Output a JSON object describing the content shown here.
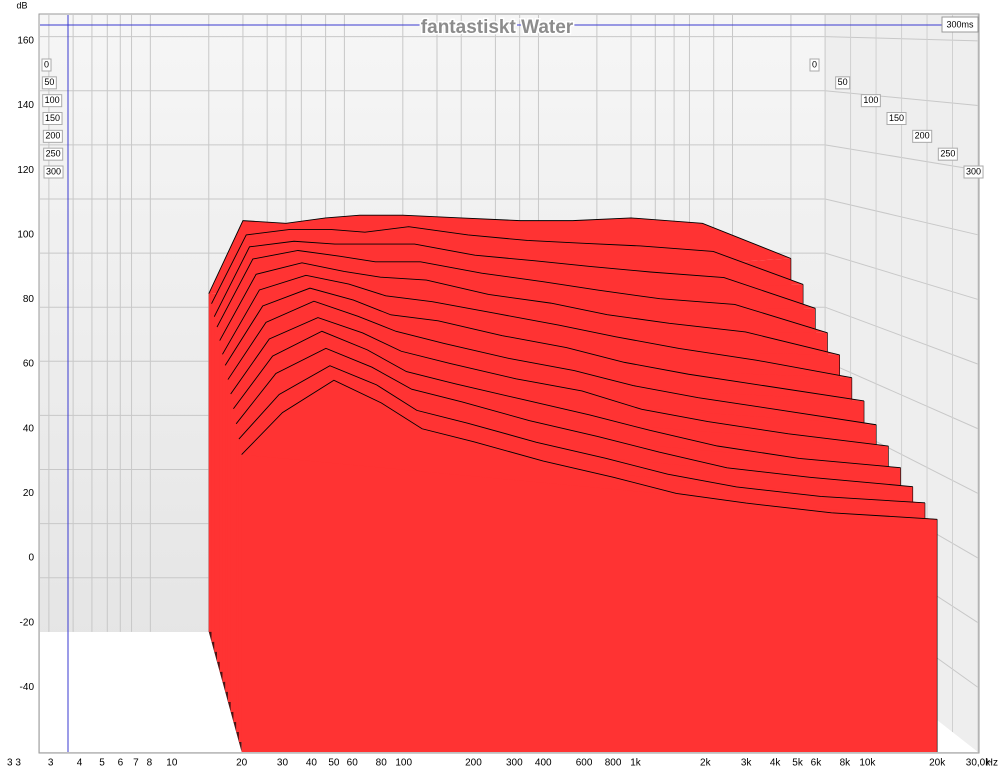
{
  "chart_data": {
    "type": "waterfall",
    "title": "fantastiskt Water",
    "y_label": "dB",
    "x_label": "Hz",
    "x_start_label": "3 3",
    "time_label": "300ms",
    "log_x": true,
    "grid": true,
    "color": "#ff3333",
    "line_color": "#000000",
    "side_color": "#4a1414",
    "xlim": [
      2.7,
      30000
    ],
    "ylim": [
      -60,
      168
    ],
    "zlim": [
      0,
      300
    ],
    "xticks": [
      3,
      4,
      5,
      6,
      7,
      8,
      10,
      20,
      30,
      40,
      50,
      60,
      80,
      100,
      200,
      300,
      400,
      600,
      800,
      {
        "value": 1000,
        "label": "1k"
      },
      {
        "value": 2000,
        "label": "2k"
      },
      {
        "value": 3000,
        "label": "3k"
      },
      {
        "value": 4000,
        "label": "4k"
      },
      {
        "value": 5000,
        "label": "5k"
      },
      {
        "value": 6000,
        "label": "6k"
      },
      {
        "value": 8000,
        "label": "8k"
      },
      {
        "value": 10000,
        "label": "10k"
      },
      {
        "value": 20000,
        "label": "20k"
      },
      {
        "value": 30000,
        "label": "30,0k"
      }
    ],
    "yticks": [
      -40,
      -20,
      0,
      20,
      40,
      60,
      80,
      100,
      120,
      140,
      160
    ],
    "zticks": [
      0,
      50,
      100,
      150,
      200,
      250,
      300
    ],
    "x": [
      20,
      30,
      50,
      80,
      120,
      200,
      400,
      800,
      1500,
      3000,
      7000,
      20000
    ],
    "slices": [
      {
        "time": 0,
        "values": [
          65,
          92,
          91,
          93,
          94,
          94,
          93,
          92,
          92,
          93,
          91,
          78
        ]
      },
      {
        "time": 25,
        "values": [
          63,
          88,
          90,
          90,
          89,
          91,
          88,
          86,
          85,
          84,
          82,
          70
        ]
      },
      {
        "time": 50,
        "values": [
          60,
          85,
          87,
          86,
          86,
          86,
          82,
          80,
          78,
          76,
          74,
          63
        ]
      },
      {
        "time": 75,
        "values": [
          58,
          82,
          85,
          83,
          81,
          81,
          77,
          74,
          71,
          68,
          66,
          56
        ]
      },
      {
        "time": 100,
        "values": [
          55,
          78,
          82,
          79,
          77,
          76,
          71,
          68,
          64,
          61,
          58,
          50
        ]
      },
      {
        "time": 125,
        "values": [
          52,
          74,
          79,
          76,
          72,
          70,
          66,
          62,
          58,
          54,
          50,
          44
        ]
      },
      {
        "time": 150,
        "values": [
          50,
          70,
          76,
          72,
          67,
          65,
          60,
          56,
          51,
          47,
          43,
          38
        ]
      },
      {
        "time": 175,
        "values": [
          47,
          66,
          73,
          68,
          63,
          59,
          54,
          50,
          45,
          41,
          37,
          32
        ]
      },
      {
        "time": 200,
        "values": [
          44,
          62,
          69,
          64,
          58,
          54,
          49,
          45,
          39,
          35,
          31,
          27
        ]
      },
      {
        "time": 225,
        "values": [
          41,
          58,
          66,
          60,
          53,
          49,
          44,
          39,
          34,
          29,
          25,
          22
        ]
      },
      {
        "time": 250,
        "values": [
          38,
          54,
          62,
          56,
          49,
          45,
          39,
          34,
          29,
          24,
          21,
          18
        ]
      },
      {
        "time": 275,
        "values": [
          35,
          49,
          58,
          52,
          44,
          40,
          34,
          29,
          24,
          20,
          17,
          15
        ]
      },
      {
        "time": 300,
        "values": [
          32,
          45,
          55,
          48,
          40,
          36,
          30,
          25,
          20,
          17,
          14,
          12
        ]
      }
    ]
  }
}
